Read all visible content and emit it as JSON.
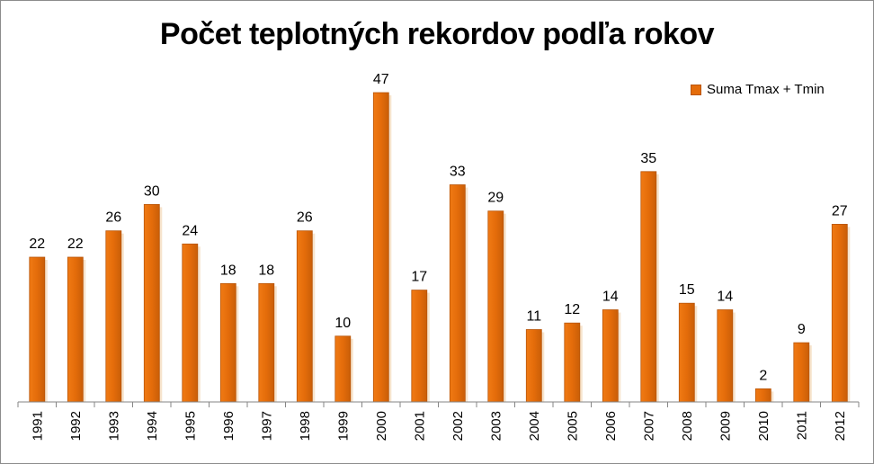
{
  "chart_data": {
    "type": "bar",
    "title": "Počet teplotných rekordov podľa rokov",
    "categories": [
      "1991",
      "1992",
      "1993",
      "1994",
      "1995",
      "1996",
      "1997",
      "1998",
      "1999",
      "2000",
      "2001",
      "2002",
      "2003",
      "2004",
      "2005",
      "2006",
      "2007",
      "2008",
      "2009",
      "2010",
      "2011",
      "2012"
    ],
    "series": [
      {
        "name": "Suma Tmax + Tmin",
        "values": [
          22,
          22,
          26,
          30,
          24,
          18,
          18,
          26,
          10,
          47,
          17,
          33,
          29,
          11,
          12,
          14,
          35,
          15,
          14,
          2,
          9,
          27
        ],
        "color": "#E46C0A"
      }
    ],
    "xlabel": "",
    "ylabel": "",
    "ylim": [
      0,
      50
    ],
    "grid": false,
    "data_labels": true,
    "legend_position": "top-right"
  }
}
